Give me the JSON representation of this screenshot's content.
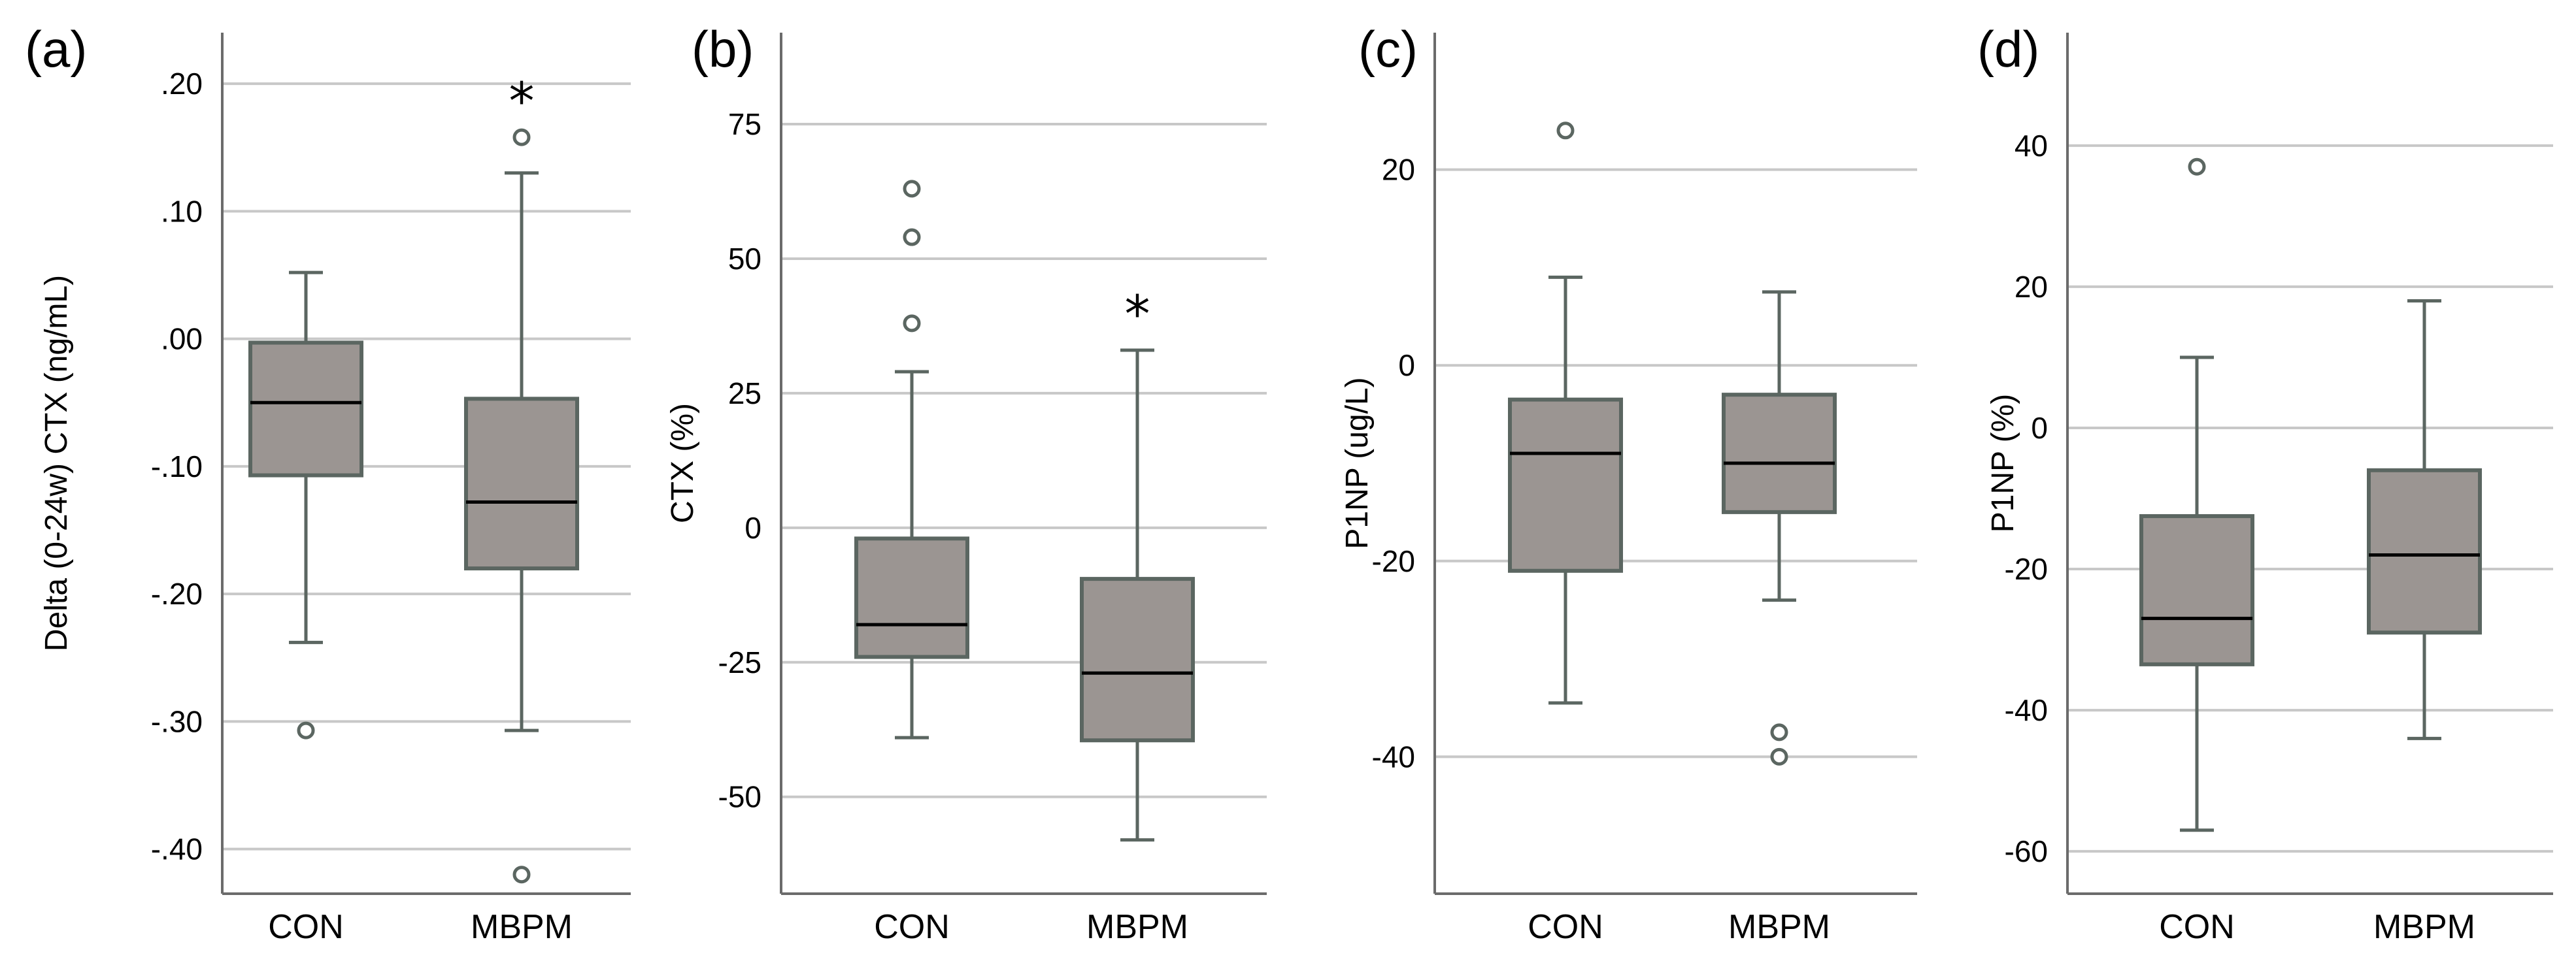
{
  "colors": {
    "box_fill": "#9b9592",
    "box_stroke": "#5b6661",
    "median": "#000000",
    "grid": "#c8c8c8",
    "axis": "#6b6b6b",
    "outlier_fill": "#ffffff"
  },
  "chart_data": [
    {
      "type": "box",
      "panel": "(a)",
      "ylabel": "Delta (0-24w) CTX (ng/mL)",
      "ylim": [
        -0.435,
        0.24
      ],
      "yticks": [
        0.2,
        0.1,
        0.0,
        -0.1,
        -0.2,
        -0.3,
        -0.4
      ],
      "ytick_labels": [
        ".20",
        ".10",
        ".00",
        "-.10",
        "-.20",
        "-.30",
        "-.40"
      ],
      "categories": [
        "CON",
        "MBPM"
      ],
      "boxes": [
        {
          "name": "CON",
          "whisker_low": -0.238,
          "q1": -0.107,
          "median": -0.05,
          "q3": -0.003,
          "whisker_high": 0.052,
          "outliers": [
            -0.307
          ],
          "significant": false
        },
        {
          "name": "MBPM",
          "whisker_low": -0.307,
          "q1": -0.18,
          "median": -0.128,
          "q3": -0.047,
          "whisker_high": 0.13,
          "outliers": [
            0.158,
            -0.42
          ],
          "significant": true
        }
      ],
      "significance_marker": "*"
    },
    {
      "type": "box",
      "panel": "(b)",
      "ylabel": "CTX (%)",
      "ylim": [
        -68,
        92
      ],
      "yticks": [
        75,
        50,
        25,
        0,
        -25,
        -50
      ],
      "ytick_labels": [
        "75",
        "50",
        "25",
        "0",
        "-25",
        "-50"
      ],
      "categories": [
        "CON",
        "MBPM"
      ],
      "boxes": [
        {
          "name": "CON",
          "whisker_low": -39,
          "q1": -24,
          "median": -18,
          "q3": -2,
          "whisker_high": 29,
          "outliers": [
            63,
            54,
            38
          ],
          "significant": false
        },
        {
          "name": "MBPM",
          "whisker_low": -58,
          "q1": -39.5,
          "median": -27,
          "q3": -9.5,
          "whisker_high": 33,
          "outliers": [],
          "significant": true
        }
      ],
      "significance_marker": "*"
    },
    {
      "type": "box",
      "panel": "(c)",
      "ylabel": "P1NP (ug/L)",
      "ylim": [
        -54,
        34
      ],
      "yticks": [
        20,
        0,
        -20,
        -40
      ],
      "ytick_labels": [
        "20",
        "0",
        "-20",
        "-40"
      ],
      "categories": [
        "CON",
        "MBPM"
      ],
      "boxes": [
        {
          "name": "CON",
          "whisker_low": -34.5,
          "q1": -21,
          "median": -9,
          "q3": -3.5,
          "whisker_high": 9,
          "outliers": [
            24
          ],
          "significant": false
        },
        {
          "name": "MBPM",
          "whisker_low": -24,
          "q1": -15,
          "median": -10,
          "q3": -3,
          "whisker_high": 7.5,
          "outliers": [
            -37.5,
            -40
          ],
          "significant": false
        }
      ],
      "significance_marker": "*"
    },
    {
      "type": "box",
      "panel": "(d)",
      "ylabel": "P1NP (%)",
      "ylim": [
        -66,
        56
      ],
      "yticks": [
        40,
        20,
        0,
        -20,
        -40,
        -60
      ],
      "ytick_labels": [
        "40",
        "20",
        "0",
        "-20",
        "-40",
        "-60"
      ],
      "categories": [
        "CON",
        "MBPM"
      ],
      "boxes": [
        {
          "name": "CON",
          "whisker_low": -57,
          "q1": -33.5,
          "median": -27,
          "q3": -12.5,
          "whisker_high": 10,
          "outliers": [
            37
          ],
          "significant": false
        },
        {
          "name": "MBPM",
          "whisker_low": -44,
          "q1": -29,
          "median": -18,
          "q3": -6,
          "whisker_high": 18,
          "outliers": [],
          "significant": false
        }
      ],
      "significance_marker": "*"
    }
  ]
}
